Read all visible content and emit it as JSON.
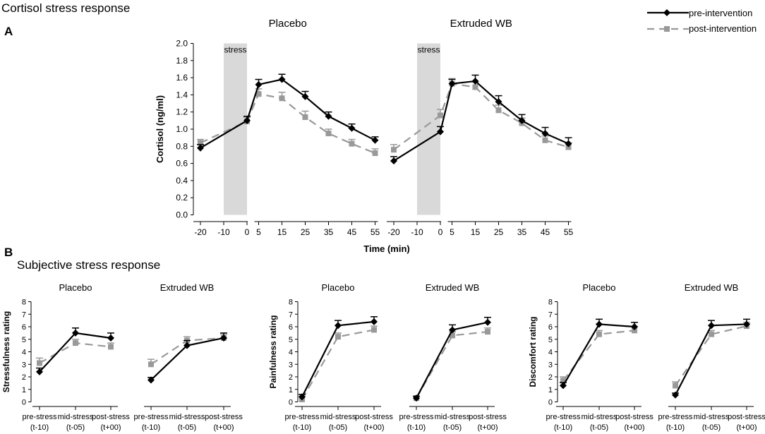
{
  "page": {
    "title_a": "Cortisol stress response",
    "title_b": "Subjective stress response",
    "label_a": "A",
    "label_b": "B"
  },
  "legend": {
    "pre": "pre-intervention",
    "post": "post-intervention"
  },
  "colors": {
    "pre": "#000000",
    "post": "#999999",
    "stress_band": "#d9d9d9"
  },
  "chart_data": [
    {
      "id": "cortisol",
      "type": "line",
      "ylabel": "Cortisol (ng/ml)",
      "xlabel": "Time (min)",
      "ylim": [
        0,
        2.0
      ],
      "yticks": [
        "0.0",
        "0.2",
        "0.4",
        "0.6",
        "0.8",
        "1.0",
        "1.2",
        "1.4",
        "1.6",
        "1.8",
        "2.0"
      ],
      "xticks": [
        -20,
        -10,
        0,
        5,
        15,
        25,
        35,
        45,
        55
      ],
      "x": [
        -20,
        0,
        5,
        15,
        25,
        35,
        45,
        55
      ],
      "stress_label": "stress",
      "stress_range": [
        -10,
        0
      ],
      "panels": [
        {
          "title": "Placebo",
          "series": [
            {
              "name": "pre-intervention",
              "values": [
                0.78,
                1.1,
                1.52,
                1.58,
                1.38,
                1.15,
                1.01,
                0.87
              ],
              "err": [
                0.04,
                0.05,
                0.06,
                0.06,
                0.06,
                0.05,
                0.05,
                0.04
              ]
            },
            {
              "name": "post-intervention",
              "values": [
                0.84,
                1.09,
                1.41,
                1.36,
                1.14,
                0.95,
                0.83,
                0.72
              ],
              "err": [
                0.04,
                0.05,
                0.06,
                0.07,
                0.07,
                0.05,
                0.05,
                0.05
              ]
            }
          ]
        },
        {
          "title": "Extruded WB",
          "series": [
            {
              "name": "pre-intervention",
              "values": [
                0.63,
                0.97,
                1.53,
                1.56,
                1.32,
                1.1,
                0.95,
                0.83
              ],
              "err": [
                0.05,
                0.06,
                0.05,
                0.07,
                0.07,
                0.07,
                0.07,
                0.07
              ]
            },
            {
              "name": "post-intervention",
              "values": [
                0.76,
                1.16,
                1.53,
                1.49,
                1.22,
                1.07,
                0.87,
                0.79
              ],
              "err": [
                0.06,
                0.07,
                0.06,
                0.06,
                0.06,
                0.06,
                0.05,
                0.05
              ]
            }
          ]
        }
      ]
    },
    {
      "id": "subjective",
      "type": "line",
      "categories": [
        "pre-stress",
        "mid-stress",
        "post-stress"
      ],
      "subcategories": [
        "(t-10)",
        "(t-05)",
        "(t+00)"
      ],
      "ylim": [
        0,
        8
      ],
      "yticks": [
        "0",
        "1",
        "2",
        "3",
        "4",
        "5",
        "6",
        "7",
        "8"
      ],
      "groups": [
        {
          "ylabel": "Stressfulness rating",
          "panels": [
            {
              "title": "Placebo",
              "series": [
                {
                  "name": "pre-intervention",
                  "values": [
                    2.4,
                    5.5,
                    5.1
                  ],
                  "err": [
                    0.3,
                    0.4,
                    0.4
                  ]
                },
                {
                  "name": "post-intervention",
                  "values": [
                    3.1,
                    4.7,
                    4.4
                  ],
                  "err": [
                    0.4,
                    0.3,
                    0.3
                  ]
                }
              ]
            },
            {
              "title": "Extruded WB",
              "series": [
                {
                  "name": "pre-intervention",
                  "values": [
                    1.75,
                    4.5,
                    5.1
                  ],
                  "err": [
                    0.2,
                    0.4,
                    0.4
                  ]
                },
                {
                  "name": "post-intervention",
                  "values": [
                    3.0,
                    4.9,
                    5.1
                  ],
                  "err": [
                    0.4,
                    0.3,
                    0.3
                  ]
                }
              ]
            }
          ]
        },
        {
          "ylabel": "Painfulness rating",
          "panels": [
            {
              "title": "Placebo",
              "series": [
                {
                  "name": "pre-intervention",
                  "values": [
                    0.4,
                    6.1,
                    6.4
                  ],
                  "err": [
                    0.2,
                    0.4,
                    0.4
                  ]
                },
                {
                  "name": "post-intervention",
                  "values": [
                    0.2,
                    5.2,
                    5.75
                  ],
                  "err": [
                    0.2,
                    0.3,
                    0.3
                  ]
                }
              ]
            },
            {
              "title": "Extruded WB",
              "series": [
                {
                  "name": "pre-intervention",
                  "values": [
                    0.3,
                    5.75,
                    6.35
                  ],
                  "err": [
                    0.15,
                    0.4,
                    0.4
                  ]
                },
                {
                  "name": "post-intervention",
                  "values": [
                    0.3,
                    5.3,
                    5.6
                  ],
                  "err": [
                    0.15,
                    0.3,
                    0.3
                  ]
                }
              ]
            }
          ]
        },
        {
          "ylabel": "Discomfort rating",
          "panels": [
            {
              "title": "Placebo",
              "series": [
                {
                  "name": "pre-intervention",
                  "values": [
                    1.3,
                    6.2,
                    6.0
                  ],
                  "err": [
                    0.25,
                    0.4,
                    0.35
                  ]
                },
                {
                  "name": "post-intervention",
                  "values": [
                    1.7,
                    5.4,
                    5.7
                  ],
                  "err": [
                    0.3,
                    0.3,
                    0.3
                  ]
                }
              ]
            },
            {
              "title": "Extruded WB",
              "series": [
                {
                  "name": "pre-intervention",
                  "values": [
                    0.55,
                    6.1,
                    6.2
                  ],
                  "err": [
                    0.15,
                    0.4,
                    0.4
                  ]
                },
                {
                  "name": "post-intervention",
                  "values": [
                    1.3,
                    5.4,
                    6.05
                  ],
                  "err": [
                    0.3,
                    0.3,
                    0.3
                  ]
                }
              ]
            }
          ]
        }
      ]
    }
  ]
}
